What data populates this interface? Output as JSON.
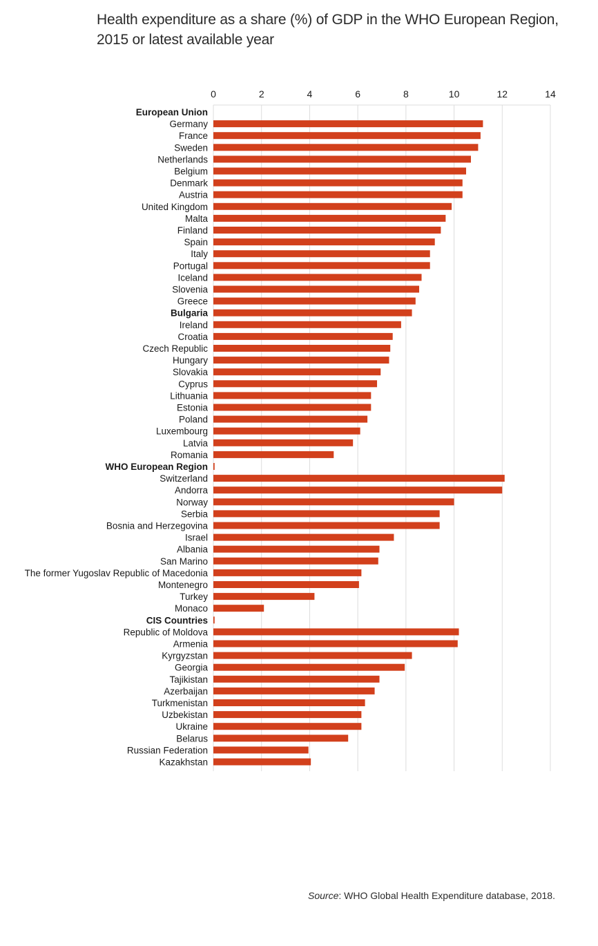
{
  "title": "Health expenditure as a share (%) of GDP in the WHO European Region, 2015 or latest available year",
  "source": {
    "label": "Source",
    "text": ": WHO Global Health Expenditure database, 2018."
  },
  "colors": {
    "bar": "#d2401c",
    "grid": "#dcdcdc",
    "text": "#1a1a1a"
  },
  "chart_data": {
    "type": "bar",
    "orientation": "horizontal",
    "xlim": [
      0,
      14
    ],
    "xticks": [
      "0",
      "2",
      "4",
      "6",
      "8",
      "10",
      "12",
      "14"
    ],
    "grid": true,
    "legend": "none",
    "categories": [
      "European Union",
      "Germany",
      "France",
      "Sweden",
      "Netherlands",
      "Belgium",
      "Denmark",
      "Austria",
      "United Kingdom",
      "Malta",
      "Finland",
      "Spain",
      "Italy",
      "Portugal",
      "Iceland",
      "Slovenia",
      "Greece",
      "Bulgaria",
      "Ireland",
      "Croatia",
      "Czech Republic",
      "Hungary",
      "Slovakia",
      "Cyprus",
      "Lithuania",
      "Estonia",
      "Poland",
      "Luxembourg",
      "Latvia",
      "Romania",
      "WHO European Region",
      "Switzerland",
      "Andorra",
      "Norway",
      "Serbia",
      "Bosnia and Herzegovina",
      "Israel",
      "Albania",
      "San Marino",
      "The former Yugoslav Republic of Macedonia",
      "Montenegro",
      "Turkey",
      "Monaco",
      "CIS Countries",
      "Republic of Moldova",
      "Armenia",
      "Kyrgyzstan",
      "Georgia",
      "Tajikistan",
      "Azerbaijan",
      "Turkmenistan",
      "Uzbekistan",
      "Ukraine",
      "Belarus",
      "Russian Federation",
      "Kazakhstan"
    ],
    "values": [
      0,
      11.2,
      11.1,
      11.0,
      10.7,
      10.5,
      10.35,
      10.35,
      9.9,
      9.65,
      9.45,
      9.2,
      9.0,
      9.0,
      8.65,
      8.55,
      8.4,
      8.25,
      7.8,
      7.45,
      7.35,
      7.3,
      6.95,
      6.8,
      6.55,
      6.55,
      6.4,
      6.1,
      5.8,
      5.0,
      0.05,
      12.1,
      12.0,
      10.0,
      9.4,
      9.4,
      7.5,
      6.9,
      6.85,
      6.15,
      6.05,
      4.2,
      2.1,
      0.05,
      10.2,
      10.15,
      8.25,
      7.95,
      6.9,
      6.7,
      6.3,
      6.15,
      6.15,
      5.6,
      3.95,
      4.05
    ],
    "bold_categories": [
      "European Union",
      "Bulgaria",
      "WHO European Region",
      "CIS Countries"
    ]
  }
}
